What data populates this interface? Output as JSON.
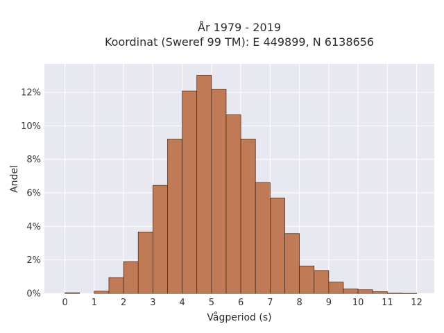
{
  "chart_data": {
    "type": "bar",
    "title_line1": "År 1979 - 2019",
    "title_line2": "Koordinat (Sweref 99 TM): E 449899, N 6138656",
    "xlabel": "Vågperiod (s)",
    "ylabel": "Andel",
    "xlim": [
      -0.7,
      12.6
    ],
    "ylim": [
      0,
      0.137
    ],
    "grid": true,
    "bin_width": 0.5,
    "bin_starts": [
      0,
      1,
      1.5,
      2,
      2.5,
      3,
      3.5,
      4,
      4.5,
      5,
      5.5,
      6,
      6.5,
      7,
      7.5,
      8,
      8.5,
      9,
      9.5,
      10,
      10.5,
      11,
      11.5
    ],
    "values": [
      0.0004,
      0.0014,
      0.0095,
      0.019,
      0.0367,
      0.0645,
      0.0921,
      0.1208,
      0.1302,
      0.1219,
      0.1066,
      0.0921,
      0.0662,
      0.057,
      0.0357,
      0.0164,
      0.0137,
      0.0068,
      0.0027,
      0.0022,
      0.0011,
      0.0003,
      0.0002
    ],
    "x_ticks": [
      0,
      1,
      2,
      3,
      4,
      5,
      6,
      7,
      8,
      9,
      10,
      11,
      12
    ],
    "y_ticks": [
      0,
      0.02,
      0.04,
      0.06,
      0.08,
      0.1,
      0.12
    ],
    "y_tick_labels": [
      "0%",
      "2%",
      "4%",
      "6%",
      "8%",
      "10%",
      "12%"
    ],
    "colors": {
      "bar_fill": "#c07a55",
      "bar_edge": "#3a2418",
      "plot_bg": "#e8e8f0",
      "grid": "#ffffff"
    }
  }
}
